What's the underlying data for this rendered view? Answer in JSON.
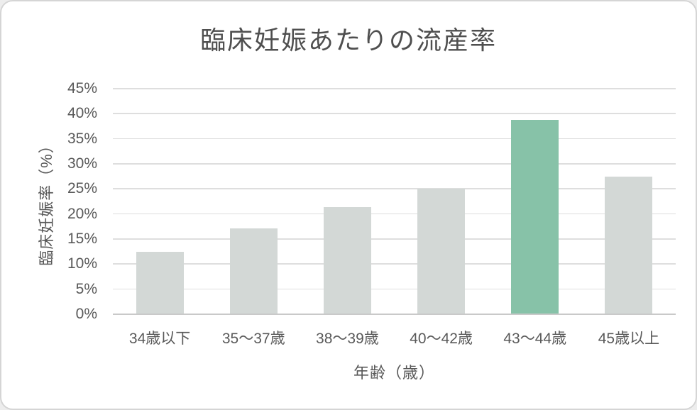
{
  "chart_data": {
    "type": "bar",
    "title": "臨床妊娠あたりの流産率",
    "xlabel": "年齢（歳）",
    "ylabel": "臨床妊娠率（%）",
    "categories": [
      "34歳以下",
      "35〜37歳",
      "38〜39歳",
      "40〜42歳",
      "43〜44歳",
      "45歳以上"
    ],
    "values": [
      12.5,
      17.1,
      21.3,
      25.0,
      38.8,
      27.5
    ],
    "ylim": [
      0,
      45
    ],
    "ytick_step": 5,
    "ytick_suffix": "%",
    "ytick_labels": [
      "0%",
      "5%",
      "10%",
      "15%",
      "20%",
      "25%",
      "30%",
      "35%",
      "40%",
      "45%"
    ],
    "grid": true,
    "legend_position": "none",
    "data_labels": false,
    "highlight_index": 4,
    "colors": {
      "bar": "#d3d8d6",
      "highlight": "#87c2a8",
      "gridline": "#dedede",
      "axis_line": "#c9c9c9",
      "tick_text": "#595959",
      "title_text": "#4f4f4f",
      "card_border": "#d5d5d5",
      "card_bg": "#ffffff"
    }
  }
}
